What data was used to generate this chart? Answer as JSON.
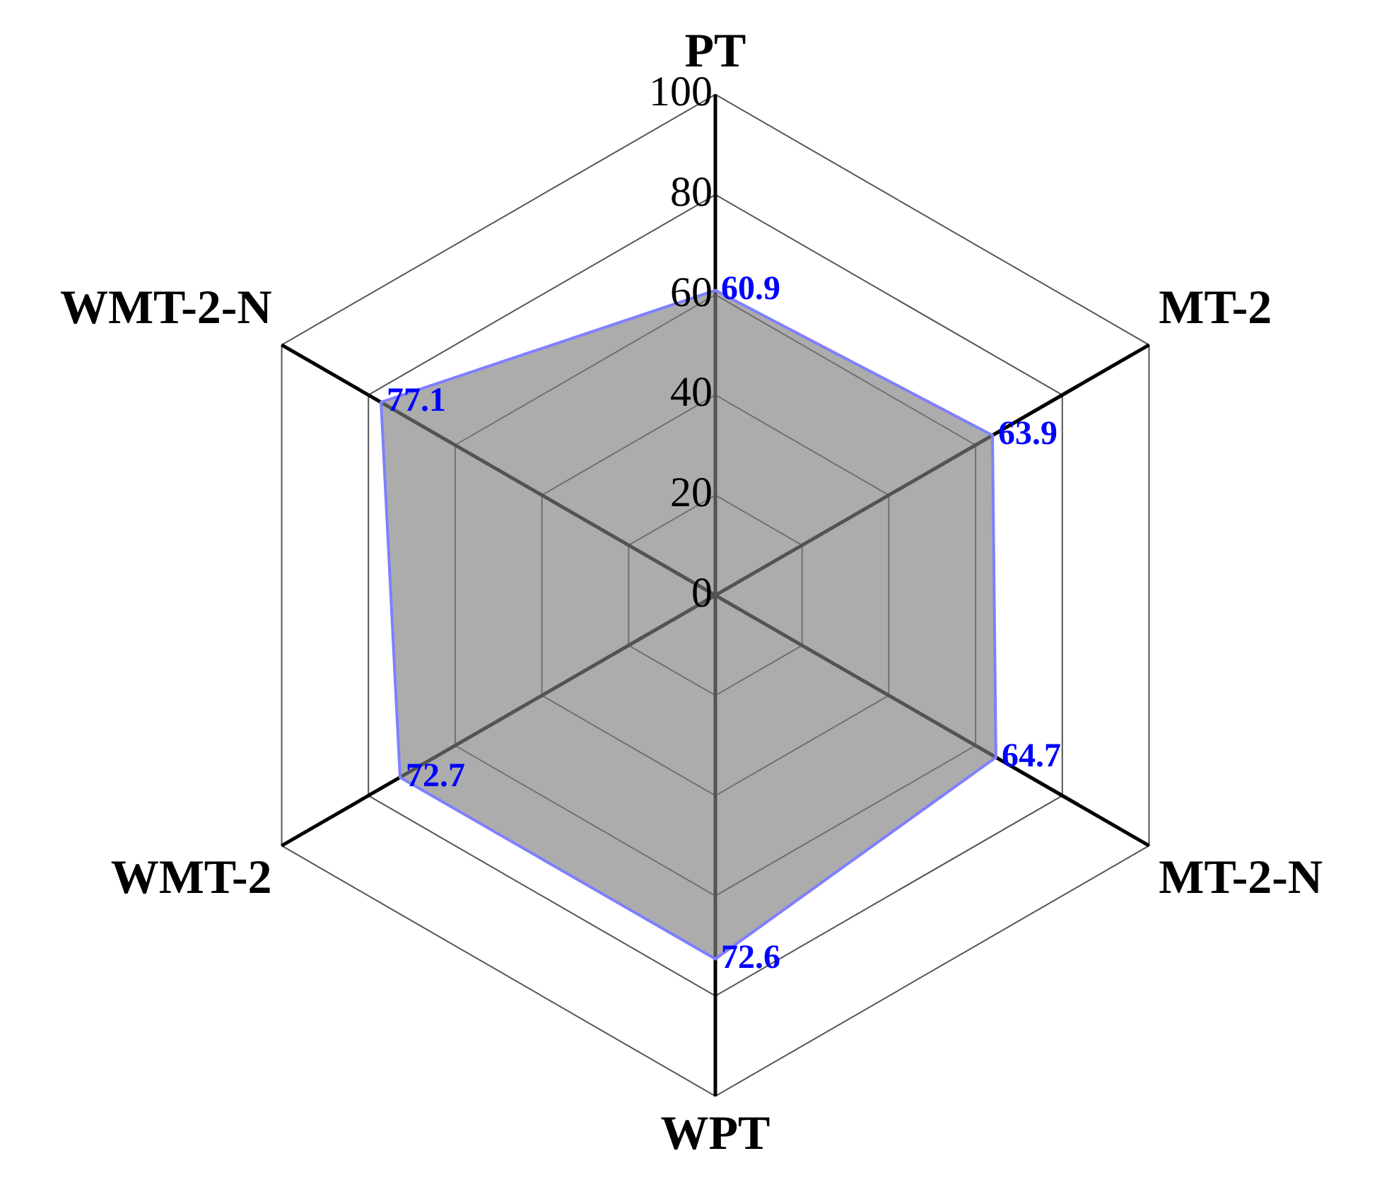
{
  "chart_data": {
    "type": "radar",
    "categories": [
      "PT",
      "MT-2",
      "MT-2-N",
      "WPT",
      "WMT-2",
      "WMT-2-N"
    ],
    "series": [
      {
        "color": "#7f7fff",
        "values": [
          60.9,
          63.9,
          64.7,
          72.6,
          72.7,
          77.1
        ]
      }
    ],
    "ylim": [
      0,
      100
    ],
    "yticks": [
      0,
      20,
      40,
      60,
      80,
      100
    ],
    "grid": true,
    "legend": false,
    "data_labels": true
  }
}
